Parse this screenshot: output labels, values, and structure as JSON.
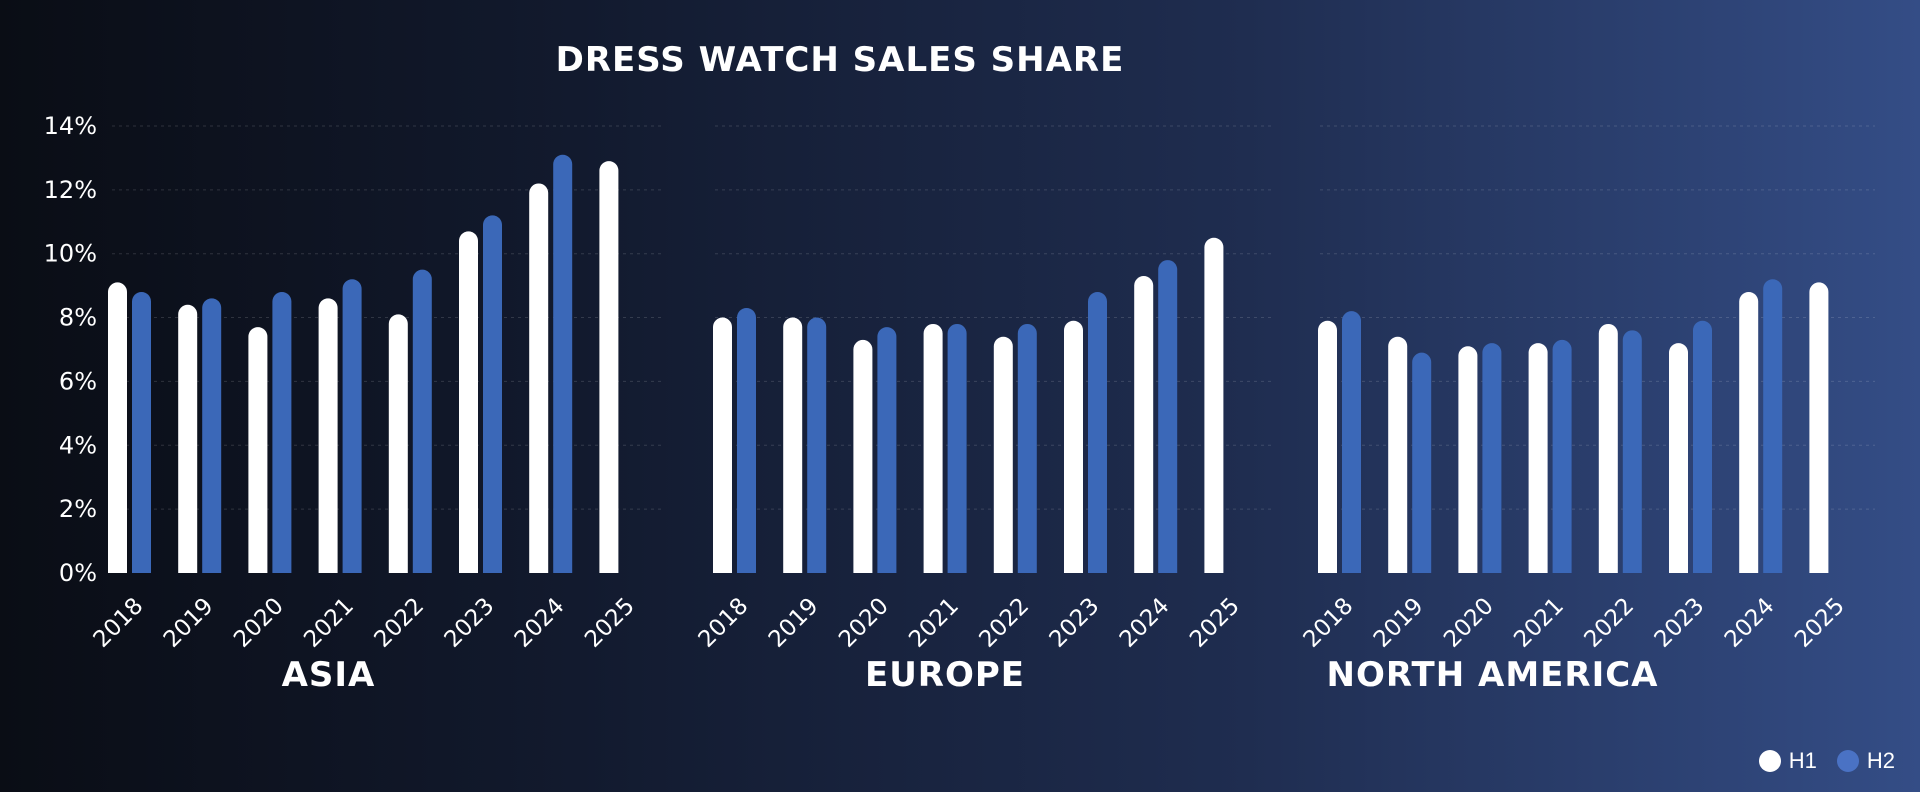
{
  "chart_data": {
    "type": "bar",
    "title": "DRESS WATCH SALES SHARE",
    "y_ticks": [
      "0%",
      "2%",
      "4%",
      "6%",
      "8%",
      "10%",
      "12%",
      "14%"
    ],
    "ylim": [
      0,
      14
    ],
    "grid": true,
    "legend_position": "bottom-right",
    "categories": [
      "2018",
      "2019",
      "2020",
      "2021",
      "2022",
      "2023",
      "2024",
      "2025"
    ],
    "series_names": [
      "H1",
      "H2"
    ],
    "colors": {
      "H1": "#ffffff",
      "H2": "#3b68b8"
    },
    "panels": [
      {
        "region": "ASIA",
        "series": [
          {
            "name": "H1",
            "values": [
              9.1,
              8.4,
              7.7,
              8.6,
              8.1,
              10.7,
              12.2,
              12.9
            ]
          },
          {
            "name": "H2",
            "values": [
              8.8,
              8.6,
              8.8,
              9.2,
              9.5,
              11.2,
              13.1,
              null
            ]
          }
        ]
      },
      {
        "region": "EUROPE",
        "series": [
          {
            "name": "H1",
            "values": [
              8.0,
              8.0,
              7.3,
              7.8,
              7.4,
              7.9,
              9.3,
              10.5
            ]
          },
          {
            "name": "H2",
            "values": [
              8.3,
              8.0,
              7.7,
              7.8,
              7.8,
              8.8,
              9.8,
              null
            ]
          }
        ]
      },
      {
        "region": "NORTH AMERICA",
        "series": [
          {
            "name": "H1",
            "values": [
              7.9,
              7.4,
              7.1,
              7.2,
              7.8,
              7.2,
              8.8,
              9.1
            ]
          },
          {
            "name": "H2",
            "values": [
              8.2,
              6.9,
              7.2,
              7.3,
              7.6,
              7.9,
              9.2,
              null
            ]
          }
        ]
      }
    ]
  },
  "legend": [
    {
      "label": "H1",
      "color": "#ffffff"
    },
    {
      "label": "H2",
      "color": "#4a72c4"
    }
  ]
}
